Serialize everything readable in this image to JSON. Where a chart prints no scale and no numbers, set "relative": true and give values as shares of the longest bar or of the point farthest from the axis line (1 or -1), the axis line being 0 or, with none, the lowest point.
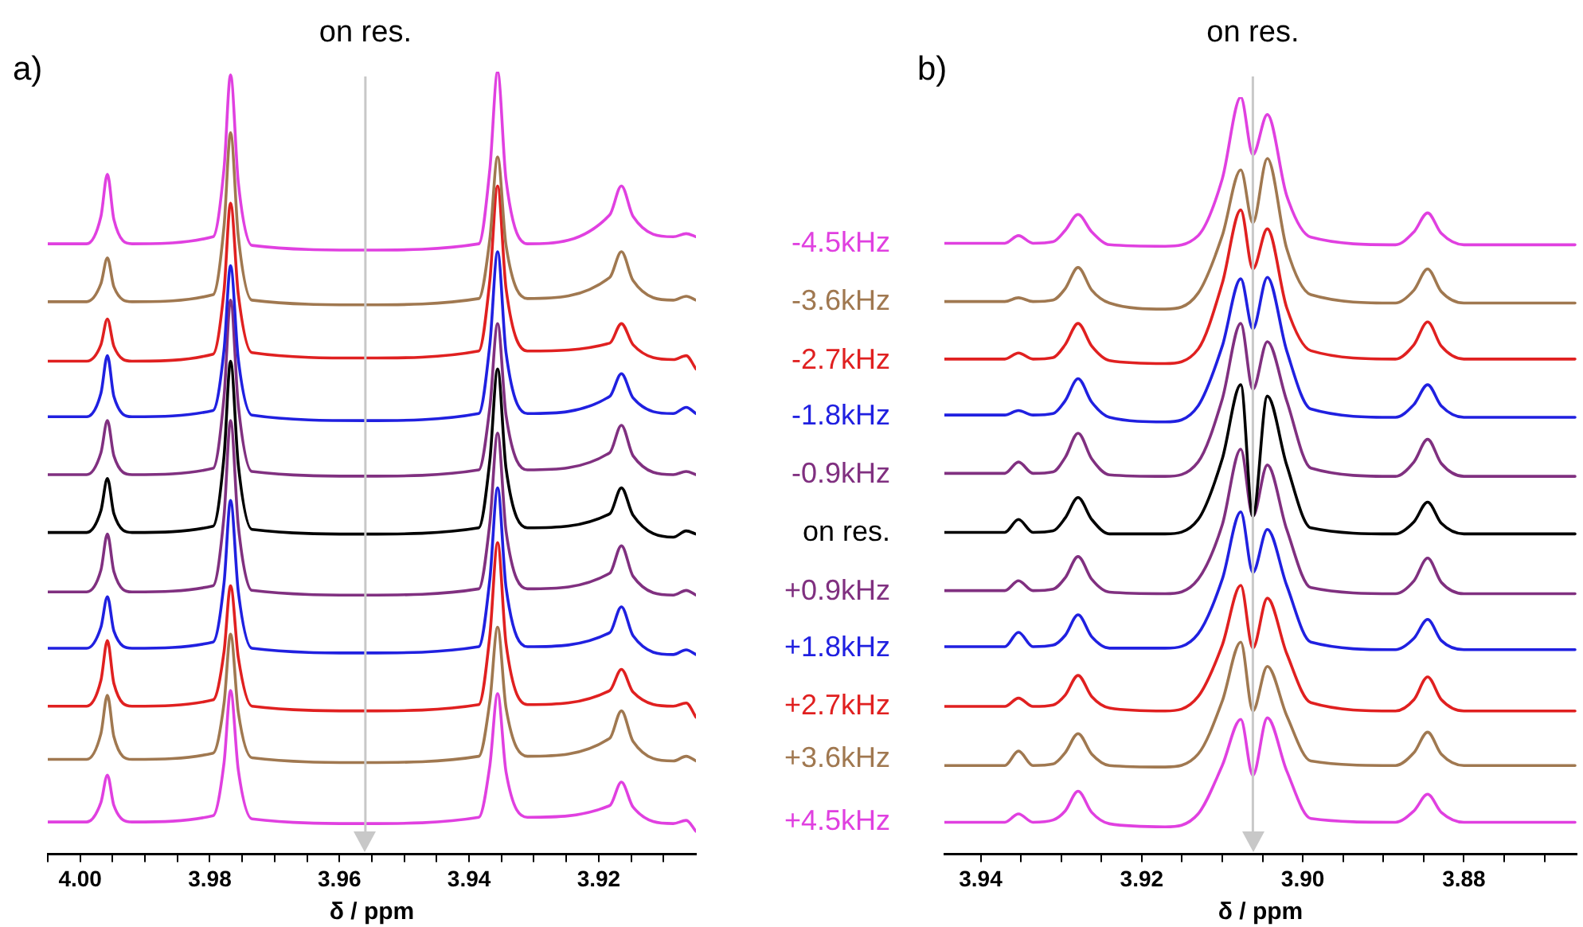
{
  "chart_data": [
    {
      "type": "line",
      "title": "a)",
      "xlabel": "δ / ppm",
      "relative": true,
      "tick_labels": "x",
      "marker": "none",
      "xlim": [
        4.005,
        3.905
      ],
      "xticks": [
        {
          "value": 4.005,
          "label": null
        },
        {
          "value": 4,
          "label": "4.00"
        },
        {
          "value": 3.995,
          "label": null
        },
        {
          "value": 3.99,
          "label": null
        },
        {
          "value": 3.985,
          "label": null
        },
        {
          "value": 3.98,
          "label": "3.98"
        },
        {
          "value": 3.975,
          "label": null
        },
        {
          "value": 3.97,
          "label": null
        },
        {
          "value": 3.965,
          "label": null
        },
        {
          "value": 3.96,
          "label": "3.96"
        },
        {
          "value": 3.955,
          "label": null
        },
        {
          "value": 3.95,
          "label": null
        },
        {
          "value": 3.945,
          "label": null
        },
        {
          "value": 3.94,
          "label": "3.94"
        },
        {
          "value": 3.935,
          "label": null
        },
        {
          "value": 3.93,
          "label": null
        },
        {
          "value": 3.925,
          "label": null
        },
        {
          "value": 3.92,
          "label": "3.92"
        },
        {
          "value": 3.915,
          "label": null
        },
        {
          "value": 3.91,
          "label": null
        }
      ],
      "ref_lines": [
        {
          "axis": "x",
          "value": 3.956,
          "label": "on res.",
          "color": "#c8c8c8"
        }
      ],
      "x": [
        4.005,
        3.999,
        3.9968,
        3.9958,
        3.9948,
        3.992,
        3.9795,
        3.9778,
        3.9768,
        3.9756,
        3.9735,
        3.956,
        3.9385,
        3.9368,
        3.9356,
        3.9343,
        3.931,
        3.9183,
        3.9165,
        3.9147,
        3.9085,
        3.9065,
        3.905
      ],
      "series": [
        {
          "name": "-4.5kHz",
          "color": "#e040e0",
          "values": [
            0.78,
            0.78,
            0.815,
            0.869,
            0.811,
            0.78,
            0.789,
            0.877,
            0.996,
            0.858,
            0.778,
            0.772,
            0.78,
            0.875,
            1,
            0.862,
            0.78,
            0.817,
            0.854,
            0.815,
            0.789,
            0.793,
            0.789
          ]
        },
        {
          "name": "-3.6kHz",
          "color": "#a07850",
          "values": [
            0.706,
            0.706,
            0.729,
            0.762,
            0.725,
            0.706,
            0.715,
            0.803,
            0.922,
            0.789,
            0.708,
            0.702,
            0.71,
            0.786,
            0.891,
            0.778,
            0.71,
            0.737,
            0.77,
            0.733,
            0.708,
            0.713,
            0.708
          ]
        },
        {
          "name": "-2.7kHz",
          "color": "#e02020",
          "values": [
            0.63,
            0.63,
            0.651,
            0.684,
            0.649,
            0.63,
            0.639,
            0.721,
            0.832,
            0.715,
            0.641,
            0.634,
            0.643,
            0.733,
            0.854,
            0.723,
            0.643,
            0.653,
            0.678,
            0.651,
            0.632,
            0.637,
            0.62
          ]
        },
        {
          "name": "-1.8kHz",
          "color": "#2020e0",
          "values": [
            0.559,
            0.559,
            0.589,
            0.637,
            0.585,
            0.559,
            0.567,
            0.645,
            0.752,
            0.632,
            0.561,
            0.554,
            0.563,
            0.651,
            0.77,
            0.641,
            0.563,
            0.585,
            0.614,
            0.583,
            0.563,
            0.571,
            0.563
          ]
        },
        {
          "name": "-0.9kHz",
          "color": "#803080",
          "values": [
            0.485,
            0.485,
            0.513,
            0.554,
            0.509,
            0.485,
            0.493,
            0.585,
            0.708,
            0.573,
            0.489,
            0.483,
            0.491,
            0.571,
            0.678,
            0.561,
            0.491,
            0.513,
            0.548,
            0.509,
            0.485,
            0.489,
            0.485
          ]
        },
        {
          "name": "on res.",
          "color": "#000000",
          "values": [
            0.411,
            0.411,
            0.439,
            0.48,
            0.435,
            0.411,
            0.419,
            0.509,
            0.63,
            0.497,
            0.415,
            0.409,
            0.417,
            0.503,
            0.62,
            0.493,
            0.417,
            0.435,
            0.468,
            0.433,
            0.405,
            0.413,
            0.409
          ]
        },
        {
          "name": "+0.9kHz",
          "color": "#803080",
          "values": [
            0.335,
            0.335,
            0.363,
            0.409,
            0.361,
            0.335,
            0.343,
            0.433,
            0.554,
            0.419,
            0.337,
            0.331,
            0.339,
            0.423,
            0.538,
            0.413,
            0.339,
            0.359,
            0.394,
            0.355,
            0.331,
            0.337,
            0.331
          ]
        },
        {
          "name": "+1.8kHz",
          "color": "#2020e0",
          "values": [
            0.263,
            0.263,
            0.29,
            0.329,
            0.285,
            0.263,
            0.271,
            0.347,
            0.452,
            0.335,
            0.263,
            0.257,
            0.265,
            0.351,
            0.468,
            0.341,
            0.265,
            0.283,
            0.316,
            0.279,
            0.255,
            0.261,
            0.255
          ]
        },
        {
          "name": "+2.7kHz",
          "color": "#e02020",
          "values": [
            0.189,
            0.189,
            0.222,
            0.273,
            0.218,
            0.189,
            0.197,
            0.259,
            0.343,
            0.251,
            0.189,
            0.183,
            0.191,
            0.279,
            0.398,
            0.269,
            0.191,
            0.209,
            0.236,
            0.207,
            0.189,
            0.193,
            0.175
          ]
        },
        {
          "name": "+3.6kHz",
          "color": "#a07850",
          "values": [
            0.121,
            0.121,
            0.154,
            0.203,
            0.15,
            0.121,
            0.129,
            0.193,
            0.281,
            0.181,
            0.123,
            0.117,
            0.125,
            0.195,
            0.29,
            0.187,
            0.125,
            0.148,
            0.183,
            0.144,
            0.119,
            0.125,
            0.119
          ]
        },
        {
          "name": "+4.5kHz",
          "color": "#e040e0",
          "values": [
            0.041,
            0.041,
            0.066,
            0.101,
            0.062,
            0.041,
            0.049,
            0.117,
            0.209,
            0.107,
            0.045,
            0.039,
            0.047,
            0.113,
            0.205,
            0.105,
            0.047,
            0.062,
            0.092,
            0.06,
            0.039,
            0.043,
            0.029
          ]
        }
      ]
    },
    {
      "type": "line",
      "title": "b)",
      "xlabel": "δ / ppm",
      "relative": true,
      "tick_labels": "x",
      "marker": "none",
      "xlim": [
        3.9445,
        3.866
      ],
      "xticks": [
        {
          "value": 3.94,
          "label": "3.94"
        },
        {
          "value": 3.935,
          "label": null
        },
        {
          "value": 3.93,
          "label": null
        },
        {
          "value": 3.925,
          "label": null
        },
        {
          "value": 3.92,
          "label": "3.92"
        },
        {
          "value": 3.915,
          "label": null
        },
        {
          "value": 3.91,
          "label": null
        },
        {
          "value": 3.905,
          "label": null
        },
        {
          "value": 3.9,
          "label": "3.90"
        },
        {
          "value": 3.895,
          "label": null
        },
        {
          "value": 3.89,
          "label": null
        },
        {
          "value": 3.885,
          "label": null
        },
        {
          "value": 3.88,
          "label": "3.88"
        },
        {
          "value": 3.875,
          "label": null
        },
        {
          "value": 3.87,
          "label": null
        }
      ],
      "ref_lines": [
        {
          "axis": "x",
          "value": 3.9062,
          "label": "on res.",
          "color": "#c8c8c8"
        }
      ],
      "x": [
        3.9445,
        3.937,
        3.9353,
        3.9335,
        3.931,
        3.9295,
        3.9279,
        3.9262,
        3.924,
        3.9171,
        3.913,
        3.91,
        3.9077,
        3.9062,
        3.9044,
        3.902,
        3.899,
        3.8885,
        3.8862,
        3.8845,
        3.8828,
        3.88,
        3.8662
      ],
      "series": [
        {
          "color": "#e040e0",
          "values": [
            0.807,
            0.807,
            0.817,
            0.807,
            0.809,
            0.824,
            0.845,
            0.822,
            0.805,
            0.803,
            0.817,
            0.892,
            1,
            0.924,
            0.977,
            0.87,
            0.815,
            0.805,
            0.822,
            0.847,
            0.82,
            0.805,
            0.805
          ]
        },
        {
          "color": "#a07850",
          "values": [
            0.73,
            0.73,
            0.735,
            0.73,
            0.732,
            0.747,
            0.775,
            0.745,
            0.728,
            0.72,
            0.741,
            0.817,
            0.904,
            0.834,
            0.919,
            0.8,
            0.739,
            0.728,
            0.745,
            0.773,
            0.743,
            0.728,
            0.728
          ]
        },
        {
          "color": "#e02020",
          "values": [
            0.654,
            0.654,
            0.662,
            0.654,
            0.656,
            0.673,
            0.701,
            0.671,
            0.652,
            0.648,
            0.667,
            0.754,
            0.851,
            0.773,
            0.826,
            0.722,
            0.665,
            0.654,
            0.673,
            0.703,
            0.671,
            0.654,
            0.654
          ]
        },
        {
          "color": "#2020e0",
          "values": [
            0.58,
            0.58,
            0.586,
            0.58,
            0.582,
            0.599,
            0.628,
            0.597,
            0.577,
            0.571,
            0.592,
            0.671,
            0.76,
            0.694,
            0.762,
            0.665,
            0.588,
            0.577,
            0.594,
            0.62,
            0.592,
            0.577,
            0.577
          ]
        },
        {
          "color": "#803080",
          "values": [
            0.503,
            0.503,
            0.518,
            0.503,
            0.505,
            0.524,
            0.556,
            0.522,
            0.501,
            0.499,
            0.518,
            0.601,
            0.701,
            0.614,
            0.677,
            0.599,
            0.51,
            0.499,
            0.518,
            0.548,
            0.516,
            0.499,
            0.499
          ]
        },
        {
          "color": "#000000",
          "values": [
            0.425,
            0.425,
            0.442,
            0.425,
            0.427,
            0.444,
            0.471,
            0.442,
            0.423,
            0.423,
            0.442,
            0.522,
            0.62,
            0.446,
            0.605,
            0.514,
            0.431,
            0.423,
            0.439,
            0.465,
            0.437,
            0.423,
            0.423
          ]
        },
        {
          "color": "#803080",
          "values": [
            0.348,
            0.348,
            0.361,
            0.348,
            0.35,
            0.365,
            0.393,
            0.363,
            0.346,
            0.344,
            0.363,
            0.435,
            0.535,
            0.446,
            0.514,
            0.429,
            0.352,
            0.344,
            0.361,
            0.391,
            0.359,
            0.344,
            0.344
          ]
        },
        {
          "color": "#2020e0",
          "values": [
            0.274,
            0.274,
            0.293,
            0.274,
            0.276,
            0.289,
            0.316,
            0.287,
            0.272,
            0.272,
            0.291,
            0.363,
            0.452,
            0.372,
            0.429,
            0.355,
            0.28,
            0.27,
            0.285,
            0.31,
            0.282,
            0.27,
            0.27
          ]
        },
        {
          "color": "#e02020",
          "values": [
            0.195,
            0.195,
            0.206,
            0.195,
            0.197,
            0.21,
            0.236,
            0.208,
            0.193,
            0.189,
            0.208,
            0.276,
            0.355,
            0.272,
            0.338,
            0.265,
            0.2,
            0.189,
            0.204,
            0.234,
            0.204,
            0.189,
            0.189
          ]
        },
        {
          "color": "#a07850",
          "values": [
            0.117,
            0.117,
            0.136,
            0.117,
            0.119,
            0.134,
            0.159,
            0.132,
            0.117,
            0.115,
            0.132,
            0.202,
            0.28,
            0.189,
            0.248,
            0.183,
            0.123,
            0.117,
            0.134,
            0.161,
            0.132,
            0.117,
            0.117
          ]
        },
        {
          "color": "#e040e0",
          "values": [
            0.042,
            0.042,
            0.053,
            0.042,
            0.045,
            0.057,
            0.083,
            0.055,
            0.04,
            0.036,
            0.053,
            0.117,
            0.178,
            0.104,
            0.18,
            0.11,
            0.047,
            0.042,
            0.057,
            0.079,
            0.055,
            0.042,
            0.042
          ]
        }
      ]
    }
  ]
}
